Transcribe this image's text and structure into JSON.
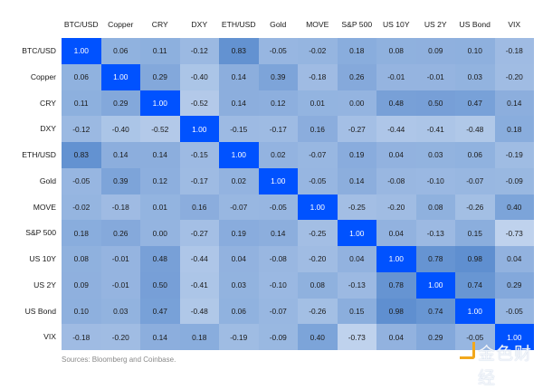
{
  "chart_data": {
    "type": "heatmap",
    "title": "",
    "xlabel": "",
    "ylabel": "",
    "labels": [
      "BTC/USD",
      "Copper",
      "CRY",
      "DXY",
      "ETH/USD",
      "Gold",
      "MOVE",
      "S&P 500",
      "US 10Y",
      "US 2Y",
      "US Bond",
      "VIX"
    ],
    "matrix": [
      [
        1.0,
        0.06,
        0.11,
        -0.12,
        0.83,
        -0.05,
        -0.02,
        0.18,
        0.08,
        0.09,
        0.1,
        -0.18
      ],
      [
        0.06,
        1.0,
        0.29,
        -0.4,
        0.14,
        0.39,
        -0.18,
        0.26,
        -0.01,
        -0.01,
        0.03,
        -0.2
      ],
      [
        0.11,
        0.29,
        1.0,
        -0.52,
        0.14,
        0.12,
        0.01,
        0.0,
        0.48,
        0.5,
        0.47,
        0.14
      ],
      [
        -0.12,
        -0.4,
        -0.52,
        1.0,
        -0.15,
        -0.17,
        0.16,
        -0.27,
        -0.44,
        -0.41,
        -0.48,
        0.18
      ],
      [
        0.83,
        0.14,
        0.14,
        -0.15,
        1.0,
        0.02,
        -0.07,
        0.19,
        0.04,
        0.03,
        0.06,
        -0.19
      ],
      [
        -0.05,
        0.39,
        0.12,
        -0.17,
        0.02,
        1.0,
        -0.05,
        0.14,
        -0.08,
        -0.1,
        -0.07,
        -0.09
      ],
      [
        -0.02,
        -0.18,
        0.01,
        0.16,
        -0.07,
        -0.05,
        1.0,
        -0.25,
        -0.2,
        0.08,
        -0.26,
        0.4
      ],
      [
        0.18,
        0.26,
        0.0,
        -0.27,
        0.19,
        0.14,
        -0.25,
        1.0,
        0.04,
        -0.13,
        0.15,
        -0.73
      ],
      [
        0.08,
        -0.01,
        0.48,
        -0.44,
        0.04,
        -0.08,
        -0.2,
        0.04,
        1.0,
        0.78,
        0.98,
        0.04
      ],
      [
        0.09,
        -0.01,
        0.5,
        -0.41,
        0.03,
        -0.1,
        0.08,
        -0.13,
        0.78,
        1.0,
        0.74,
        0.29
      ],
      [
        0.1,
        0.03,
        0.47,
        -0.48,
        0.06,
        -0.07,
        -0.26,
        0.15,
        0.98,
        0.74,
        1.0,
        -0.05
      ],
      [
        -0.18,
        -0.2,
        0.14,
        0.18,
        -0.19,
        -0.09,
        0.4,
        -0.73,
        0.04,
        0.29,
        -0.05,
        1.0
      ]
    ],
    "value_range": [
      -1,
      1
    ],
    "color_scale": {
      "low": "#c3d5ee",
      "high": "#5f8fd0",
      "diagonal": "#0052ff"
    },
    "source": "Sources: Bloomberg and Coinbase."
  },
  "footer": {
    "source": "Sources: Bloomberg and Coinbase."
  },
  "watermark": {
    "text": "金色财经"
  }
}
